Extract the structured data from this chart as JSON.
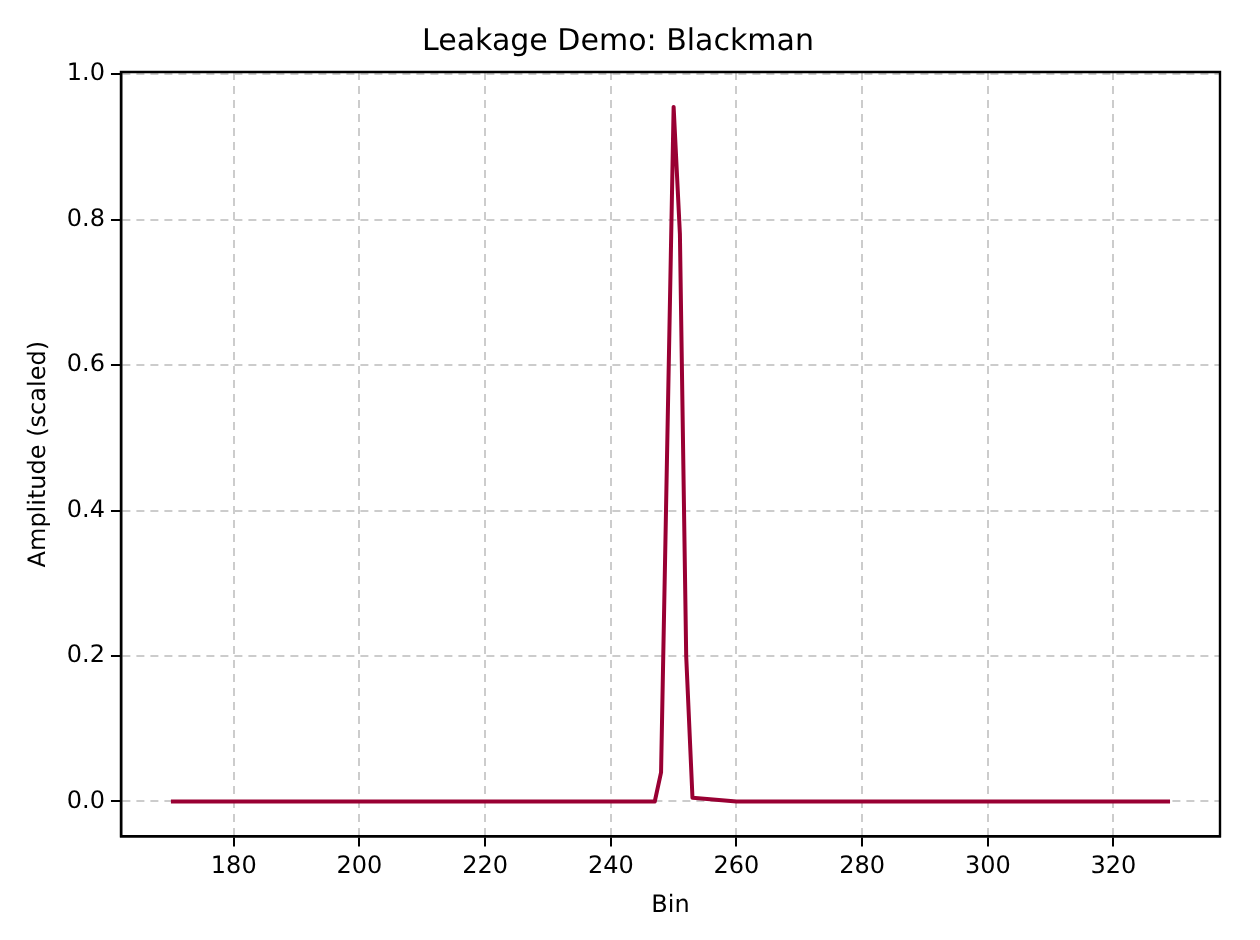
{
  "chart_data": {
    "type": "line",
    "title": "Leakage Demo: Blackman",
    "xlabel": "Bin",
    "ylabel": "Amplitude (scaled)",
    "x": [
      170,
      247,
      248,
      250,
      251,
      252,
      253,
      260,
      329
    ],
    "series": [
      {
        "color": "#990033",
        "values": [
          0,
          0,
          0.04,
          0.955,
          0.78,
          0.2,
          0.005,
          0,
          0
        ]
      }
    ],
    "xlim": [
      162.05,
      336.95
    ],
    "xticks": [
      180,
      200,
      220,
      240,
      260,
      280,
      300,
      320
    ],
    "ylim": [
      -0.048,
      1.003
    ],
    "yticks": [
      {
        "value": 0,
        "label": "0.0"
      },
      {
        "value": 0.2,
        "label": "0.2"
      },
      {
        "value": 0.4,
        "label": "0.4"
      },
      {
        "value": 0.6,
        "label": "0.6"
      },
      {
        "value": 0.8,
        "label": "0.8"
      },
      {
        "value": 1,
        "label": "1.0"
      }
    ],
    "grid": true,
    "legend": false,
    "marker": "none",
    "line_style": "solid"
  }
}
